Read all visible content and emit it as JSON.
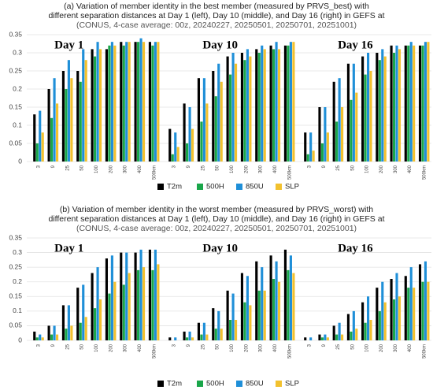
{
  "chart_data": [
    {
      "type": "bar",
      "title": [
        "(a) Variation of member identity in the best member (measured by PRVS_best) with",
        "different separation distances at Day 1 (left), Day 10 (middle), and Day 16 (right) in GEFS at"
      ],
      "subtitle": "(CONUS, 4-case average: 00z, 20240227, 20250501, 20250701, 20251001)",
      "categories": [
        "3",
        "9",
        "25",
        "50",
        "100",
        "200",
        "300",
        "400",
        "500km"
      ],
      "series": [
        {
          "name": "T2m",
          "color": "#000000"
        },
        {
          "name": "500H",
          "color": "#1aa64a"
        },
        {
          "name": "850U",
          "color": "#1f8fd8"
        },
        {
          "name": "SLP",
          "color": "#f2c12e"
        }
      ],
      "ylim": [
        0,
        0.35
      ],
      "yticks": [
        0,
        0.05,
        0.1,
        0.15,
        0.2,
        0.25,
        0.3,
        0.35
      ],
      "grid": true,
      "subplots": [
        {
          "label": "Day 1",
          "values": [
            [
              0.13,
              0.2,
              0.25,
              0.25,
              0.31,
              0.31,
              0.33,
              0.33,
              0.33
            ],
            [
              0.05,
              0.12,
              0.2,
              0.22,
              0.29,
              0.32,
              0.32,
              0.33,
              0.32
            ],
            [
              0.14,
              0.23,
              0.28,
              0.31,
              0.33,
              0.33,
              0.33,
              0.34,
              0.33
            ],
            [
              0.08,
              0.16,
              0.23,
              0.28,
              0.31,
              0.32,
              0.33,
              0.33,
              0.33
            ]
          ]
        },
        {
          "label": "Day 10",
          "values": [
            [
              0.09,
              0.16,
              0.23,
              0.25,
              0.29,
              0.3,
              0.31,
              0.32,
              0.32
            ],
            [
              0.02,
              0.05,
              0.11,
              0.18,
              0.24,
              0.28,
              0.3,
              0.31,
              0.32
            ],
            [
              0.08,
              0.15,
              0.23,
              0.27,
              0.3,
              0.31,
              0.32,
              0.33,
              0.33
            ],
            [
              0.04,
              0.09,
              0.16,
              0.22,
              0.27,
              0.29,
              0.31,
              0.31,
              0.33
            ]
          ]
        },
        {
          "label": "Day 16",
          "values": [
            [
              0.08,
              0.15,
              0.22,
              0.27,
              0.29,
              0.3,
              0.32,
              0.32,
              0.32
            ],
            [
              0.02,
              0.05,
              0.11,
              0.17,
              0.24,
              0.28,
              0.3,
              0.32,
              0.32
            ],
            [
              0.08,
              0.15,
              0.23,
              0.27,
              0.3,
              0.31,
              0.32,
              0.33,
              0.33
            ],
            [
              0.03,
              0.08,
              0.15,
              0.19,
              0.25,
              0.29,
              0.31,
              0.32,
              0.33
            ]
          ]
        }
      ]
    },
    {
      "type": "bar",
      "title": [
        "(b) Variation of member identity in the worst member (measured by PRVS_worst) with",
        "different separation distances at Day 1 (left), Day 10 (middle), and Day 16 (right) in GEFS at"
      ],
      "subtitle": "(CONUS, 4-case average: 00z, 20240227, 20250501, 20250701, 20251001)",
      "categories": [
        "3",
        "9",
        "25",
        "50",
        "100",
        "200",
        "300",
        "400",
        "500km"
      ],
      "series": [
        {
          "name": "T2m",
          "color": "#000000"
        },
        {
          "name": "500H",
          "color": "#1aa64a"
        },
        {
          "name": "850U",
          "color": "#1f8fd8"
        },
        {
          "name": "SLP",
          "color": "#f2c12e"
        }
      ],
      "ylim": [
        0,
        0.35
      ],
      "yticks": [
        0,
        0.05,
        0.1,
        0.15,
        0.2,
        0.25,
        0.3,
        0.35
      ],
      "grid": true,
      "subplots": [
        {
          "label": "Day 1",
          "values": [
            [
              0.03,
              0.05,
              0.12,
              0.18,
              0.23,
              0.28,
              0.3,
              0.3,
              0.31
            ],
            [
              0.01,
              0.02,
              0.04,
              0.06,
              0.11,
              0.16,
              0.19,
              0.24,
              0.24
            ],
            [
              0.02,
              0.05,
              0.12,
              0.19,
              0.25,
              0.29,
              0.3,
              0.31,
              0.31
            ],
            [
              0.01,
              0.02,
              0.05,
              0.08,
              0.14,
              0.2,
              0.23,
              0.25,
              0.26
            ]
          ]
        },
        {
          "label": "Day 10",
          "values": [
            [
              0.01,
              0.03,
              0.06,
              0.11,
              0.17,
              0.23,
              0.27,
              0.29,
              0.31
            ],
            [
              0.0,
              0.01,
              0.02,
              0.04,
              0.07,
              0.13,
              0.17,
              0.21,
              0.24
            ],
            [
              0.01,
              0.03,
              0.06,
              0.1,
              0.16,
              0.22,
              0.25,
              0.27,
              0.29
            ],
            [
              0.0,
              0.01,
              0.02,
              0.04,
              0.07,
              0.12,
              0.17,
              0.2,
              0.23
            ]
          ]
        },
        {
          "label": "Day 16",
          "values": [
            [
              0.01,
              0.02,
              0.05,
              0.09,
              0.13,
              0.18,
              0.21,
              0.22,
              0.26
            ],
            [
              0.0,
              0.01,
              0.02,
              0.03,
              0.06,
              0.1,
              0.14,
              0.18,
              0.2
            ],
            [
              0.01,
              0.02,
              0.06,
              0.1,
              0.15,
              0.2,
              0.23,
              0.25,
              0.27
            ],
            [
              0.0,
              0.01,
              0.02,
              0.04,
              0.07,
              0.13,
              0.15,
              0.18,
              0.2
            ]
          ]
        }
      ]
    }
  ]
}
